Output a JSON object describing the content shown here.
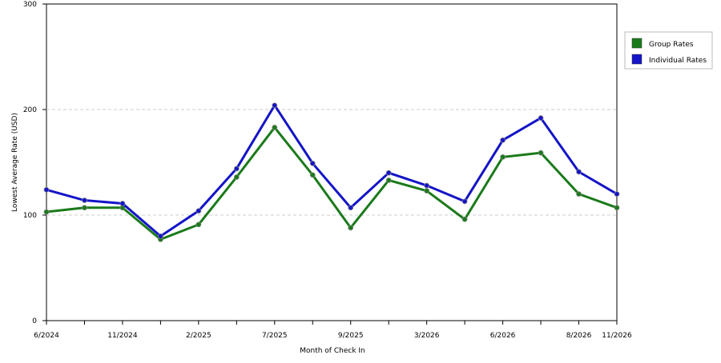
{
  "chart_data": {
    "type": "line",
    "x_label": "Month of Check In",
    "y_label": "Lowest Average Rate (USD)",
    "categories": [
      "6/2024",
      null,
      "11/2024",
      null,
      "2/2025",
      null,
      "7/2025",
      null,
      "9/2025",
      null,
      "3/2026",
      null,
      "6/2026",
      null,
      "8/2026",
      "11/2026"
    ],
    "series": [
      {
        "name": "Group Rates",
        "color": "#1a7a1a",
        "values": [
          103,
          107,
          107,
          77,
          91,
          136,
          183,
          138,
          88,
          133,
          123,
          96,
          155,
          159,
          120,
          107
        ]
      },
      {
        "name": "Individual Rates",
        "color": "#1414c8",
        "values": [
          124,
          114,
          111,
          80,
          104,
          144,
          204,
          149,
          107,
          140,
          128,
          113,
          171,
          192,
          141,
          120
        ]
      }
    ],
    "ylim": [
      0,
      300
    ],
    "yticks": [
      0,
      100,
      200,
      300
    ],
    "grid": true,
    "legend": "right"
  }
}
